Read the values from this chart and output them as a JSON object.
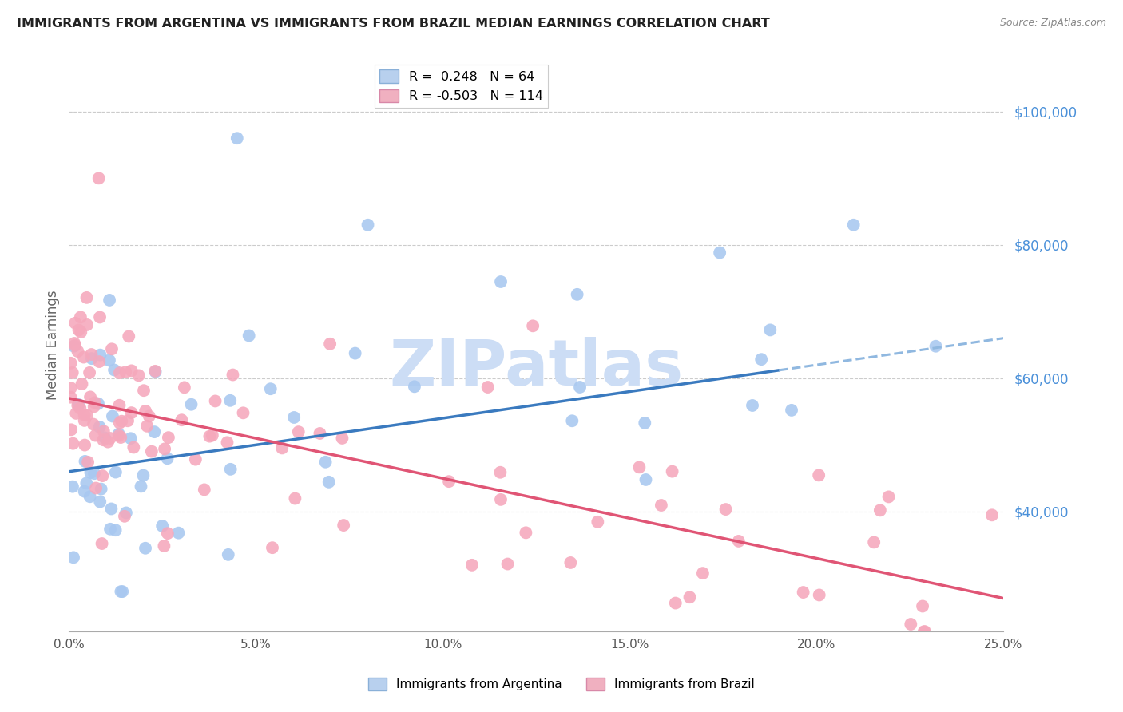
{
  "title": "IMMIGRANTS FROM ARGENTINA VS IMMIGRANTS FROM BRAZIL MEDIAN EARNINGS CORRELATION CHART",
  "source": "Source: ZipAtlas.com",
  "ylabel": "Median Earnings",
  "ytick_labels": [
    "$40,000",
    "$60,000",
    "$80,000",
    "$100,000"
  ],
  "ytick_values": [
    40000,
    60000,
    80000,
    100000
  ],
  "xlim": [
    0.0,
    25.0
  ],
  "ylim": [
    22000,
    108000
  ],
  "argentina_color": "#a8c8f0",
  "brazil_color": "#f5a8bc",
  "argentina_R": 0.248,
  "argentina_N": 64,
  "brazil_R": -0.503,
  "brazil_N": 114,
  "argentina_line_color": "#3a7abf",
  "brazil_line_color": "#e05575",
  "dashed_line_color": "#90b8e0",
  "watermark": "ZIPatlas",
  "watermark_color": "#ccddf5",
  "background_color": "#ffffff",
  "title_color": "#222222",
  "right_axis_color": "#4a90d9",
  "legend_box_color_argentina": "#b8d0ee",
  "legend_box_color_brazil": "#f0b0c0",
  "arg_line_x0": 0.0,
  "arg_line_y0": 46000,
  "arg_line_x1": 25.0,
  "arg_line_y1": 66000,
  "bra_line_x0": 0.0,
  "bra_line_y0": 57000,
  "bra_line_x1": 25.0,
  "bra_line_y1": 27000,
  "dashed_start_x": 19.0,
  "dashed_end_x": 25.5
}
